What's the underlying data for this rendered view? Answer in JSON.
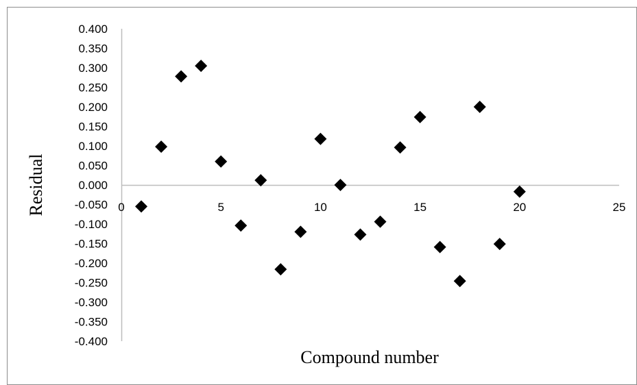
{
  "chart_data": {
    "type": "scatter",
    "title": "",
    "xlabel": "Compound number",
    "ylabel": "Residual",
    "xlim": [
      0,
      25
    ],
    "ylim": [
      -0.4,
      0.4
    ],
    "x_ticks": [
      "0",
      "5",
      "10",
      "15",
      "20",
      "25"
    ],
    "y_ticks": [
      "0.400",
      "0.350",
      "0.300",
      "0.250",
      "0.200",
      "0.150",
      "0.100",
      "0.050",
      "0.000",
      "-0.050",
      "-0.100",
      "-0.150",
      "-0.200",
      "-0.250",
      "-0.300",
      "-0.350",
      "-0.400"
    ],
    "grid": false,
    "legend": "none",
    "marker": "diamond",
    "marker_color": "#000000",
    "series": [
      {
        "x": [
          1,
          2,
          3,
          4,
          5,
          6,
          7,
          8,
          9,
          10,
          11,
          12,
          13,
          14,
          15,
          16,
          17,
          18,
          19,
          20
        ],
        "y": [
          -0.055,
          0.098,
          0.278,
          0.305,
          0.06,
          -0.104,
          0.012,
          -0.216,
          -0.12,
          0.118,
          0.0,
          -0.127,
          -0.094,
          0.096,
          0.174,
          -0.159,
          -0.246,
          0.2,
          -0.151,
          -0.017
        ]
      }
    ]
  }
}
